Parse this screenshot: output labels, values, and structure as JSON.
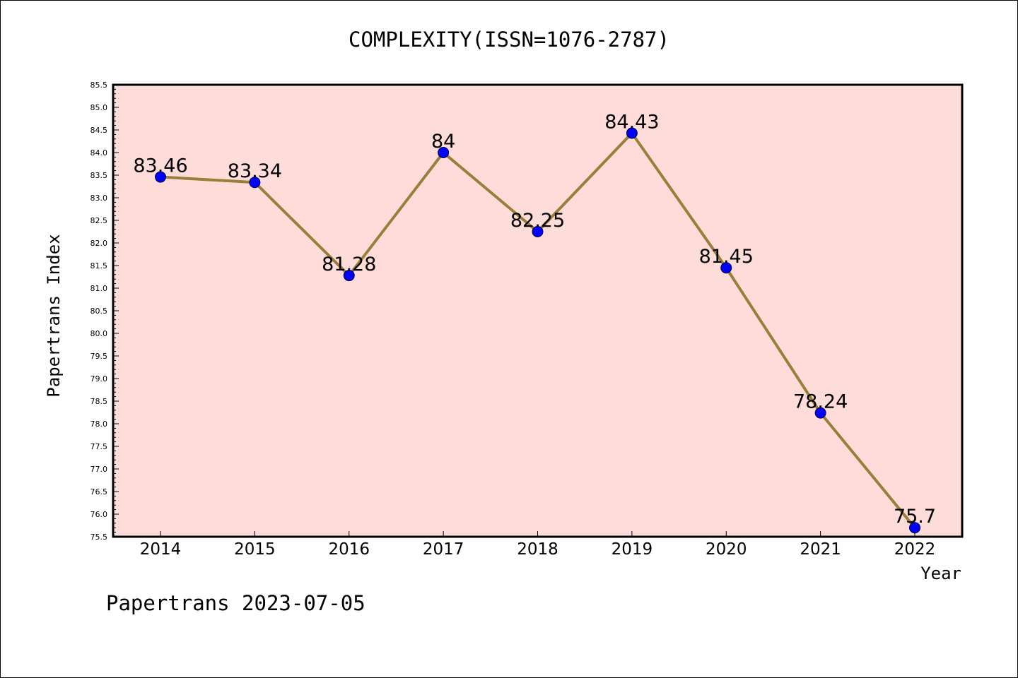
{
  "chart_data": {
    "type": "line",
    "title": "COMPLEXITY(ISSN=1076-2787)",
    "xlabel": "Year",
    "ylabel": "Papertrans Index",
    "categories": [
      "2014",
      "2015",
      "2016",
      "2017",
      "2018",
      "2019",
      "2020",
      "2021",
      "2022"
    ],
    "values": [
      83.46,
      83.34,
      81.28,
      84,
      82.25,
      84.43,
      81.45,
      78.24,
      75.7
    ],
    "data_labels": [
      "83.46",
      "83.34",
      "81.28",
      "84",
      "82.25",
      "84.43",
      "81.45",
      "78.24",
      "75.7"
    ],
    "ylim": [
      75.5,
      85.5
    ],
    "yticks": [
      "75.5",
      "76.0",
      "76.5",
      "77.0",
      "77.5",
      "78.0",
      "78.5",
      "79.0",
      "79.5",
      "80.0",
      "80.5",
      "81.0",
      "81.5",
      "82.0",
      "82.5",
      "83.0",
      "83.5",
      "84.0",
      "84.5",
      "85.0",
      "85.5"
    ],
    "grid": false,
    "line_color": "#9a7f3a",
    "marker_color": "#0000ff",
    "plot_background": "#fddcda"
  },
  "footer": "Papertrans 2023-07-05"
}
